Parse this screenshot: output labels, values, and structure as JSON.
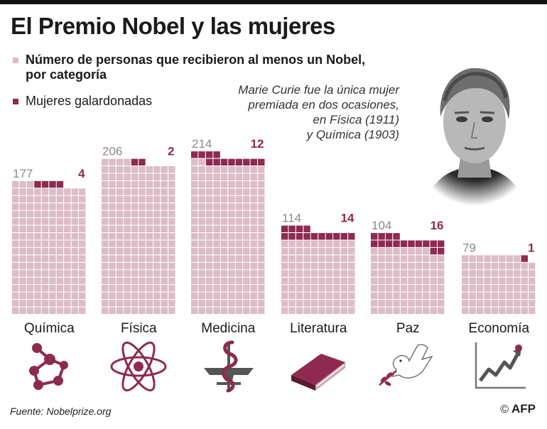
{
  "title": "El Premio Nobel y las mujeres",
  "legend": {
    "total_label": "Número de personas que recibieron al menos un Nobel,",
    "total_label_line2": "por categoría",
    "women_label": "Mujeres galardonadas"
  },
  "note": {
    "line1": "Marie Curie fue la única mujer",
    "line2": "premiada en dos ocasiones,",
    "line3": "en Física (1911)",
    "line4": "y Química (1903)"
  },
  "colors": {
    "total": "#dcbcc8",
    "women": "#8e2a4f",
    "label_total": "#8a8a8a",
    "label_women": "#8e2a4f"
  },
  "chart_data": {
    "type": "waffle",
    "units": "personas",
    "categories": [
      "Química",
      "Física",
      "Medicina",
      "Literatura",
      "Paz",
      "Economía"
    ],
    "series": [
      {
        "name": "Número de personas que recibieron al menos un Nobel, por categoría",
        "values": [
          177,
          206,
          214,
          114,
          104,
          79
        ]
      },
      {
        "name": "Mujeres galardonadas",
        "values": [
          4,
          2,
          12,
          14,
          16,
          1
        ]
      }
    ],
    "totals_text": [
      "177",
      "206",
      "214",
      "114",
      "104",
      "79"
    ],
    "women_text": [
      "4",
      "2",
      "12",
      "14",
      "16",
      "1"
    ]
  },
  "icons": [
    "molecule-icon",
    "atom-icon",
    "caduceus-icon",
    "book-icon",
    "dove-icon",
    "growth-chart-icon"
  ],
  "source": "Fuente: Nobelprize.org",
  "credit": {
    "copyright": "©",
    "agency": "AFP"
  }
}
